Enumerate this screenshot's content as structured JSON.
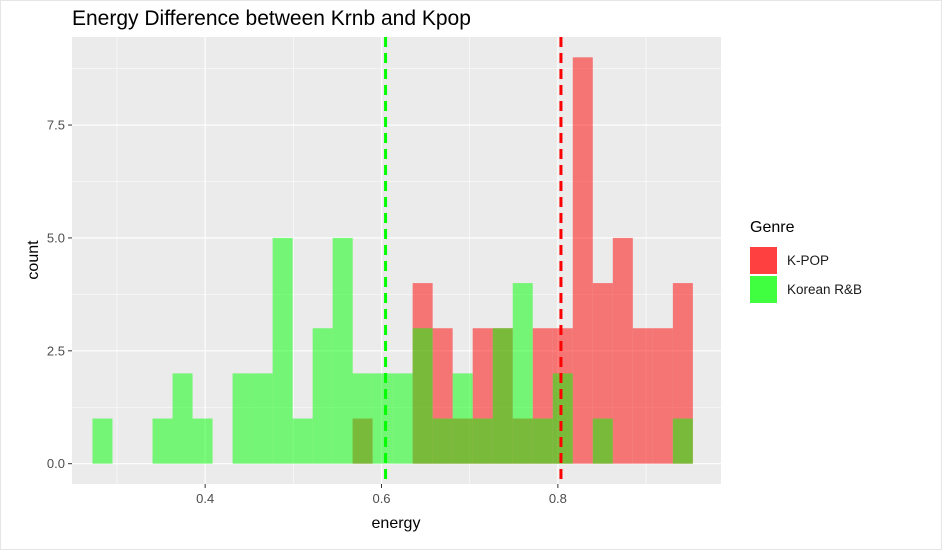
{
  "chart_data": {
    "type": "histogram",
    "title": "Energy Difference between Krnb and Kpop",
    "xlabel": "energy",
    "ylabel": "count",
    "xlim": [
      0.249,
      0.985
    ],
    "ylim": [
      -0.45,
      9.45
    ],
    "x_ticks": [
      {
        "value": 0.4,
        "label": "0.4"
      },
      {
        "value": 0.6,
        "label": "0.6"
      },
      {
        "value": 0.8,
        "label": "0.8"
      }
    ],
    "y_ticks": [
      {
        "value": 0,
        "label": "0.0"
      },
      {
        "value": 2.5,
        "label": "2.5"
      },
      {
        "value": 5,
        "label": "5.0"
      },
      {
        "value": 7.5,
        "label": "7.5"
      }
    ],
    "bin_width": 0.0227,
    "grid": true,
    "legend": {
      "title": "Genre",
      "position": "right"
    },
    "series": [
      {
        "name": "K-POP",
        "color": "#FF0000",
        "mean": 0.8035,
        "bins": [
          {
            "x0": 0.5672,
            "count": 1
          },
          {
            "x0": 0.6353,
            "count": 4
          },
          {
            "x0": 0.658,
            "count": 3
          },
          {
            "x0": 0.6807,
            "count": 1
          },
          {
            "x0": 0.7034,
            "count": 3
          },
          {
            "x0": 0.7261,
            "count": 3
          },
          {
            "x0": 0.7488,
            "count": 1
          },
          {
            "x0": 0.7715,
            "count": 3
          },
          {
            "x0": 0.7942,
            "count": 3
          },
          {
            "x0": 0.8169,
            "count": 9
          },
          {
            "x0": 0.8396,
            "count": 4
          },
          {
            "x0": 0.8623,
            "count": 5
          },
          {
            "x0": 0.885,
            "count": 3
          },
          {
            "x0": 0.9077,
            "count": 3
          },
          {
            "x0": 0.9304,
            "count": 4
          }
        ]
      },
      {
        "name": "Korean R&B",
        "color": "#00FF00",
        "mean": 0.6046,
        "bins": [
          {
            "x0": 0.2722,
            "count": 1
          },
          {
            "x0": 0.3403,
            "count": 1
          },
          {
            "x0": 0.363,
            "count": 2
          },
          {
            "x0": 0.3857,
            "count": 1
          },
          {
            "x0": 0.4311,
            "count": 2
          },
          {
            "x0": 0.4538,
            "count": 2
          },
          {
            "x0": 0.4765,
            "count": 5
          },
          {
            "x0": 0.4992,
            "count": 1
          },
          {
            "x0": 0.5219,
            "count": 3
          },
          {
            "x0": 0.5446,
            "count": 5
          },
          {
            "x0": 0.5672,
            "count": 2
          },
          {
            "x0": 0.5899,
            "count": 2
          },
          {
            "x0": 0.6126,
            "count": 2
          },
          {
            "x0": 0.6353,
            "count": 3
          },
          {
            "x0": 0.658,
            "count": 1
          },
          {
            "x0": 0.6807,
            "count": 2
          },
          {
            "x0": 0.7034,
            "count": 1
          },
          {
            "x0": 0.7261,
            "count": 3
          },
          {
            "x0": 0.7488,
            "count": 4
          },
          {
            "x0": 0.7715,
            "count": 1
          },
          {
            "x0": 0.7942,
            "count": 2
          },
          {
            "x0": 0.8396,
            "count": 1
          },
          {
            "x0": 0.9304,
            "count": 1
          }
        ]
      }
    ]
  }
}
